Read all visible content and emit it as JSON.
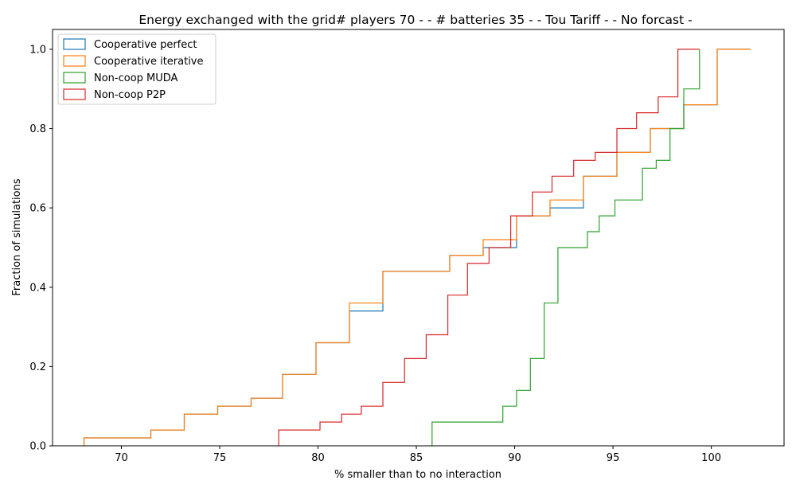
{
  "chart_data": {
    "type": "line",
    "title": "Energy exchanged with the grid# players 70 - - # batteries 35 - - Tou Tariff -  - No forcast -",
    "xlabel": "% smaller than to no interaction",
    "ylabel": "Fraction of simulations",
    "xlim": [
      66.5,
      103.7
    ],
    "ylim": [
      0,
      1.05
    ],
    "xticks": [
      70,
      75,
      80,
      85,
      90,
      95,
      100
    ],
    "xtick_labels": [
      "70",
      "75",
      "80",
      "85",
      "90",
      "95",
      "100"
    ],
    "yticks": [
      0,
      0.2,
      0.4,
      0.6,
      0.8,
      1.0
    ],
    "ytick_labels": [
      "0.0",
      "0.2",
      "0.4",
      "0.6",
      "0.8",
      "1.0"
    ],
    "grid": false,
    "legend_position": "top-left",
    "step_style": "cumulative step histogram",
    "series": [
      {
        "name": "Cooperative perfect",
        "color": "#1f77b4",
        "x": [
          68.1,
          71.5,
          73.2,
          74.9,
          76.6,
          78.2,
          79.9,
          81.6,
          83.3,
          86.7,
          88.4,
          90.1,
          91.8,
          93.5,
          95.2,
          96.9,
          98.6,
          100.3,
          102.0
        ],
        "y": [
          0.02,
          0.04,
          0.08,
          0.1,
          0.12,
          0.18,
          0.26,
          0.34,
          0.44,
          0.48,
          0.5,
          0.58,
          0.6,
          0.68,
          0.74,
          0.8,
          0.86,
          1.0,
          1.0
        ]
      },
      {
        "name": "Cooperative iterative",
        "color": "#ff7f0e",
        "x": [
          68.1,
          71.5,
          73.2,
          74.9,
          76.6,
          78.2,
          79.9,
          81.6,
          83.3,
          86.7,
          88.4,
          90.1,
          91.8,
          93.5,
          95.2,
          96.9,
          98.6,
          100.3,
          102.0
        ],
        "y": [
          0.02,
          0.04,
          0.08,
          0.1,
          0.12,
          0.18,
          0.26,
          0.36,
          0.44,
          0.48,
          0.52,
          0.58,
          0.62,
          0.68,
          0.74,
          0.8,
          0.86,
          1.0,
          1.0
        ]
      },
      {
        "name": "Non-coop MUDA",
        "color": "#2ca02c",
        "x": [
          85.8,
          89.4,
          90.1,
          90.8,
          91.5,
          92.2,
          93.7,
          94.3,
          95.1,
          96.5,
          97.2,
          97.9,
          98.6,
          99.4
        ],
        "y": [
          0.06,
          0.1,
          0.14,
          0.22,
          0.36,
          0.5,
          0.54,
          0.58,
          0.62,
          0.7,
          0.72,
          0.8,
          0.9,
          1.0
        ]
      },
      {
        "name": "Non-coop P2P",
        "color": "#d62728",
        "x": [
          78.0,
          80.1,
          81.2,
          82.2,
          83.3,
          84.4,
          85.5,
          86.6,
          87.6,
          88.7,
          89.8,
          90.9,
          91.9,
          93.0,
          94.1,
          95.2,
          96.2,
          97.3,
          98.3,
          99.4
        ],
        "y": [
          0.04,
          0.06,
          0.08,
          0.1,
          0.16,
          0.22,
          0.28,
          0.38,
          0.46,
          0.5,
          0.58,
          0.64,
          0.68,
          0.72,
          0.74,
          0.8,
          0.84,
          0.88,
          1.0,
          1.0
        ]
      }
    ]
  }
}
